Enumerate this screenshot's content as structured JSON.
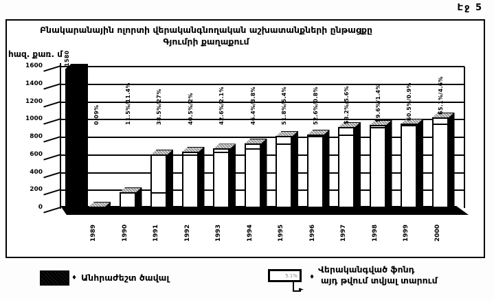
{
  "page_label": "Էջ 5",
  "chart_data": {
    "type": "bar",
    "title": "Բնակարանային ոլորտի վերականգնողական աշխատանքների ընթացքը",
    "subtitle": "Գյումրի քաղաքում",
    "ylabel": "հազ. քառ. մ",
    "ylim": [
      0,
      1600
    ],
    "yticks": [
      "0",
      "200",
      "400",
      "600",
      "800",
      "1000",
      "1200",
      "1400",
      "1600"
    ],
    "grid": true,
    "legend_position": "bottom",
    "categories": [
      "1989",
      "1990",
      "1991",
      "1992",
      "1993",
      "1994",
      "1995",
      "1996",
      "1997",
      "1998",
      "1999",
      "2000"
    ],
    "necessary_volume": {
      "year": "1989",
      "value": 1580,
      "value_label": "1580"
    },
    "restored_cumulative_values": [
      1.4,
      182,
      608,
      640,
      673,
      733,
      818,
      831,
      920,
      942,
      956,
      1029
    ],
    "bar_labels": [
      "0.09%",
      "11.5%/11.4%",
      "38.5%/27%",
      "40.5%/2%",
      "42.6%/2.1%",
      "46.4%/3.8%",
      "51.8%/5.4%",
      "52.6%/0.8%",
      "58.2%/5.6%",
      "59.6%/1.4%",
      "60.5%/0.9%",
      "65.1%/4.6%"
    ],
    "legend": {
      "necessary": "Անհրաժեշտ ծավալ",
      "restored_line1": "Վերականգված ֆոնդ",
      "restored_line2": "այդ թվում տվյալ տարում",
      "swatch_text": "5.1%",
      "bullet": "♦",
      "arrow_head": "►"
    },
    "colors": {
      "necessary": "#000000",
      "restored": "#ffffff",
      "ink": "#000000"
    }
  }
}
